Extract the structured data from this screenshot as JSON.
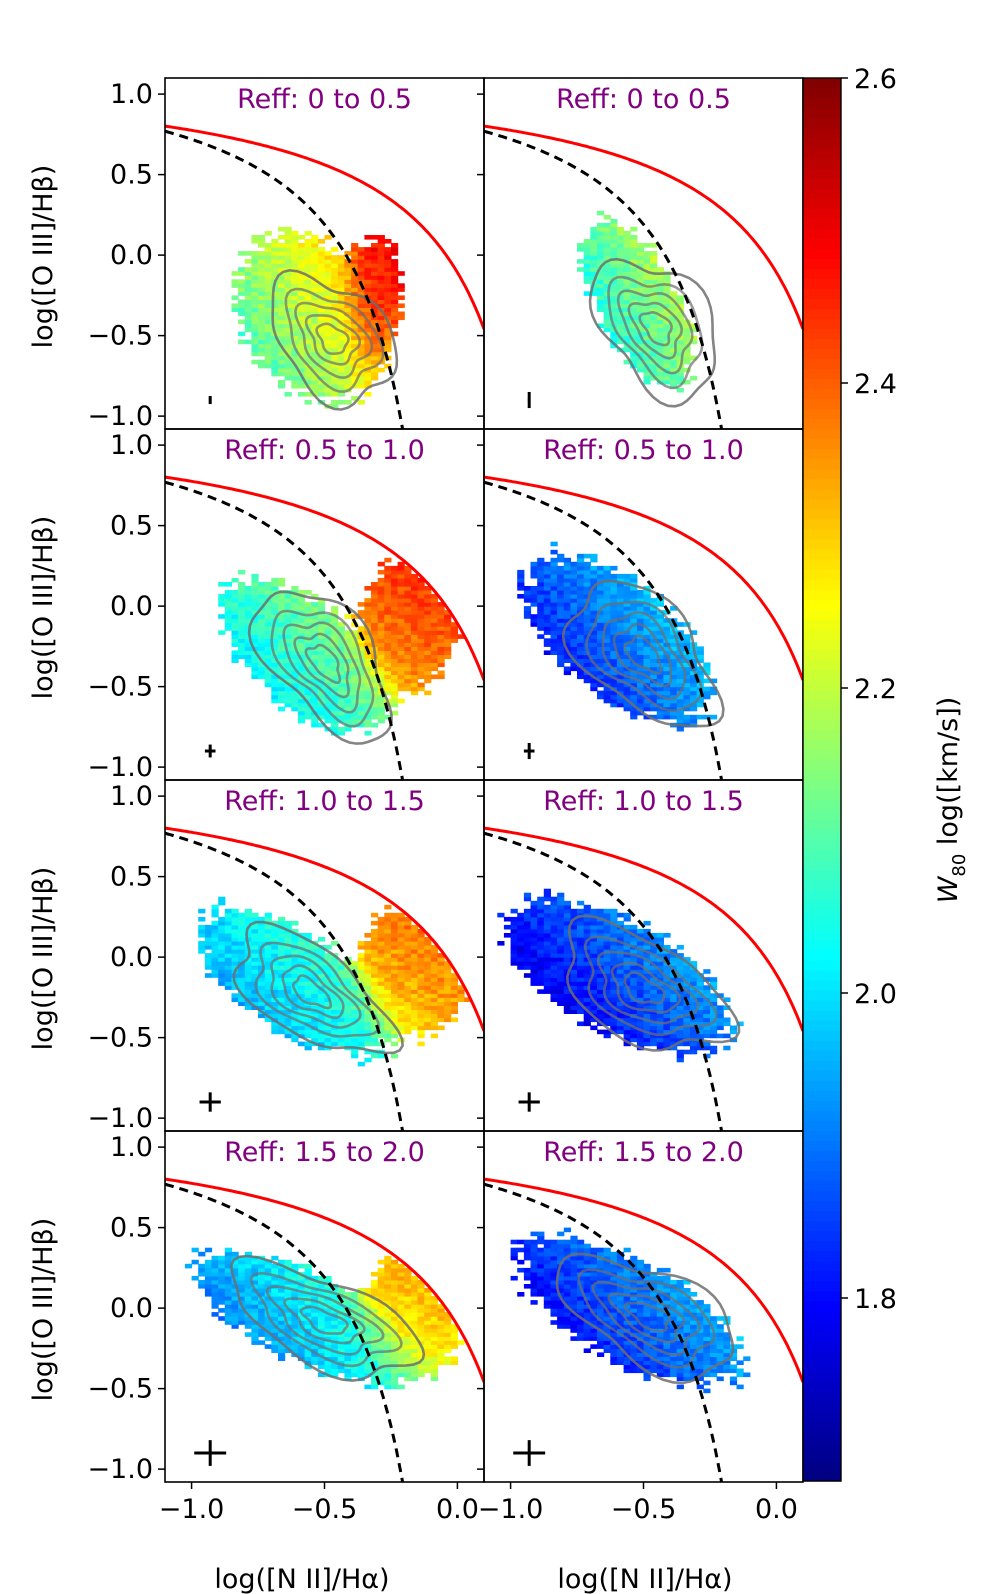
{
  "chart_data": {
    "type": "heatmap",
    "figure": "BPT diagram grid: [O III]/Hbeta vs [N II]/Halpha, binned and colored by W80",
    "xlabel": "log([N II]/Hα)",
    "ylabel": "log([O III]/Hβ)",
    "xlim": [
      -1.1,
      0.1
    ],
    "ylim": [
      -1.08,
      1.1
    ],
    "xticks": [
      -1.0,
      -0.5,
      0.0
    ],
    "xtick_labels_left": [
      "−1.0",
      "−0.5",
      "0.0"
    ],
    "xtick_labels_right": [
      "−1.0",
      "−0.5",
      "0.0"
    ],
    "yticks": [
      1.0,
      0.5,
      0.0,
      -0.5,
      -1.0
    ],
    "ytick_labels": [
      "1.0",
      "0.5",
      "0.0",
      "−0.5",
      "−1.0"
    ],
    "colorbar": {
      "label_prefix": "W",
      "label_sub": "80",
      "label_suffix": " log([km/s])",
      "range": [
        1.68,
        2.6
      ],
      "ticks": [
        1.8,
        2.0,
        2.2,
        2.4,
        2.6
      ],
      "tick_labels": [
        "1.8",
        "2.0",
        "2.2",
        "2.4",
        "2.6"
      ],
      "colormap": "jet"
    },
    "kewley_line": {
      "color": "#ff0000",
      "formula": "0.61/(x-0.47)+1.19"
    },
    "kauffmann_line": {
      "color": "#000000",
      "style": "dashed",
      "formula": "0.61/(x-0.05)+1.30"
    },
    "contour_color": "#6f6f6f",
    "panels": [
      {
        "title": "Reff: 0 to 0.5",
        "column": 0,
        "row": 0,
        "err_x": 0.005,
        "err_y": 0.025,
        "clouds": [
          {
            "cx": -0.56,
            "cy": -0.38,
            "sx": 0.13,
            "sy": 0.25,
            "rho": -0.25,
            "w80": 2.2,
            "grad": 1.2
          },
          {
            "cx": -0.32,
            "cy": -0.28,
            "sx": 0.05,
            "sy": 0.19,
            "rho": 0.2,
            "w80": 2.44,
            "grad": 0.6
          }
        ],
        "contour": {
          "cx": -0.47,
          "cy": -0.52,
          "sx": 0.12,
          "sy": 0.2,
          "rho": -0.35
        }
      },
      {
        "title": "Reff: 0 to 0.5",
        "column": 1,
        "row": 0,
        "err_x": 0.005,
        "err_y": 0.05,
        "clouds": [
          {
            "cx": -0.52,
            "cy": -0.3,
            "sx": 0.1,
            "sy": 0.25,
            "rho": -0.6,
            "w80": 2.12,
            "grad": 1.3
          }
        ],
        "contour": {
          "cx": -0.45,
          "cy": -0.45,
          "sx": 0.12,
          "sy": 0.22,
          "rho": -0.4
        }
      },
      {
        "title": "Reff: 0.5 to 1.0",
        "column": 0,
        "row": 1,
        "err_x": 0.02,
        "err_y": 0.04,
        "clouds": [
          {
            "cx": -0.58,
            "cy": -0.3,
            "sx": 0.15,
            "sy": 0.23,
            "rho": -0.6,
            "w80": 2.08,
            "grad": 0.8
          },
          {
            "cx": -0.18,
            "cy": -0.1,
            "sx": 0.09,
            "sy": 0.2,
            "rho": 0.1,
            "w80": 2.4,
            "grad": 0.4
          }
        ],
        "contour": {
          "cx": -0.5,
          "cy": -0.35,
          "sx": 0.13,
          "sy": 0.24,
          "rho": -0.55
        }
      },
      {
        "title": "Reff: 0.5 to 1.0",
        "column": 1,
        "row": 1,
        "err_x": 0.02,
        "err_y": 0.05,
        "clouds": [
          {
            "cx": -0.6,
            "cy": -0.2,
            "sx": 0.17,
            "sy": 0.25,
            "rho": -0.6,
            "w80": 1.9,
            "grad": 0.9
          }
        ],
        "contour": {
          "cx": -0.5,
          "cy": -0.3,
          "sx": 0.14,
          "sy": 0.23,
          "rho": -0.5
        }
      },
      {
        "title": "Reff: 1.0 to 1.5",
        "column": 0,
        "row": 2,
        "err_x": 0.04,
        "err_y": 0.06,
        "clouds": [
          {
            "cx": -0.62,
            "cy": -0.15,
            "sx": 0.17,
            "sy": 0.22,
            "rho": -0.65,
            "w80": 2.02,
            "grad": 0.8
          },
          {
            "cx": -0.15,
            "cy": -0.05,
            "sx": 0.1,
            "sy": 0.2,
            "rho": 0.0,
            "w80": 2.35,
            "grad": 0.4
          }
        ],
        "contour": {
          "cx": -0.55,
          "cy": -0.22,
          "sx": 0.15,
          "sy": 0.2,
          "rho": -0.6
        }
      },
      {
        "title": "Reff: 1.0 to 1.5",
        "column": 1,
        "row": 2,
        "err_x": 0.04,
        "err_y": 0.06,
        "clouds": [
          {
            "cx": -0.6,
            "cy": -0.12,
            "sx": 0.2,
            "sy": 0.23,
            "rho": -0.6,
            "w80": 1.86,
            "grad": 0.8
          }
        ],
        "contour": {
          "cx": -0.5,
          "cy": -0.2,
          "sx": 0.16,
          "sy": 0.2,
          "rho": -0.5
        }
      },
      {
        "title": "Reff: 1.5 to 2.0",
        "column": 0,
        "row": 3,
        "err_x": 0.06,
        "err_y": 0.08,
        "clouds": [
          {
            "cx": -0.58,
            "cy": -0.05,
            "sx": 0.2,
            "sy": 0.2,
            "rho": -0.7,
            "w80": 2.0,
            "grad": 0.9
          },
          {
            "cx": -0.15,
            "cy": 0.0,
            "sx": 0.1,
            "sy": 0.18,
            "rho": 0.0,
            "w80": 2.3,
            "grad": 0.4
          }
        ],
        "contour": {
          "cx": -0.5,
          "cy": -0.08,
          "sx": 0.18,
          "sy": 0.18,
          "rho": -0.6
        }
      },
      {
        "title": "Reff: 1.5 to 2.0",
        "column": 1,
        "row": 3,
        "err_x": 0.06,
        "err_y": 0.08,
        "clouds": [
          {
            "cx": -0.55,
            "cy": -0.02,
            "sx": 0.2,
            "sy": 0.22,
            "rho": -0.65,
            "w80": 1.88,
            "grad": 0.8
          }
        ],
        "contour": {
          "cx": -0.48,
          "cy": -0.05,
          "sx": 0.17,
          "sy": 0.19,
          "rho": -0.55
        }
      }
    ]
  }
}
